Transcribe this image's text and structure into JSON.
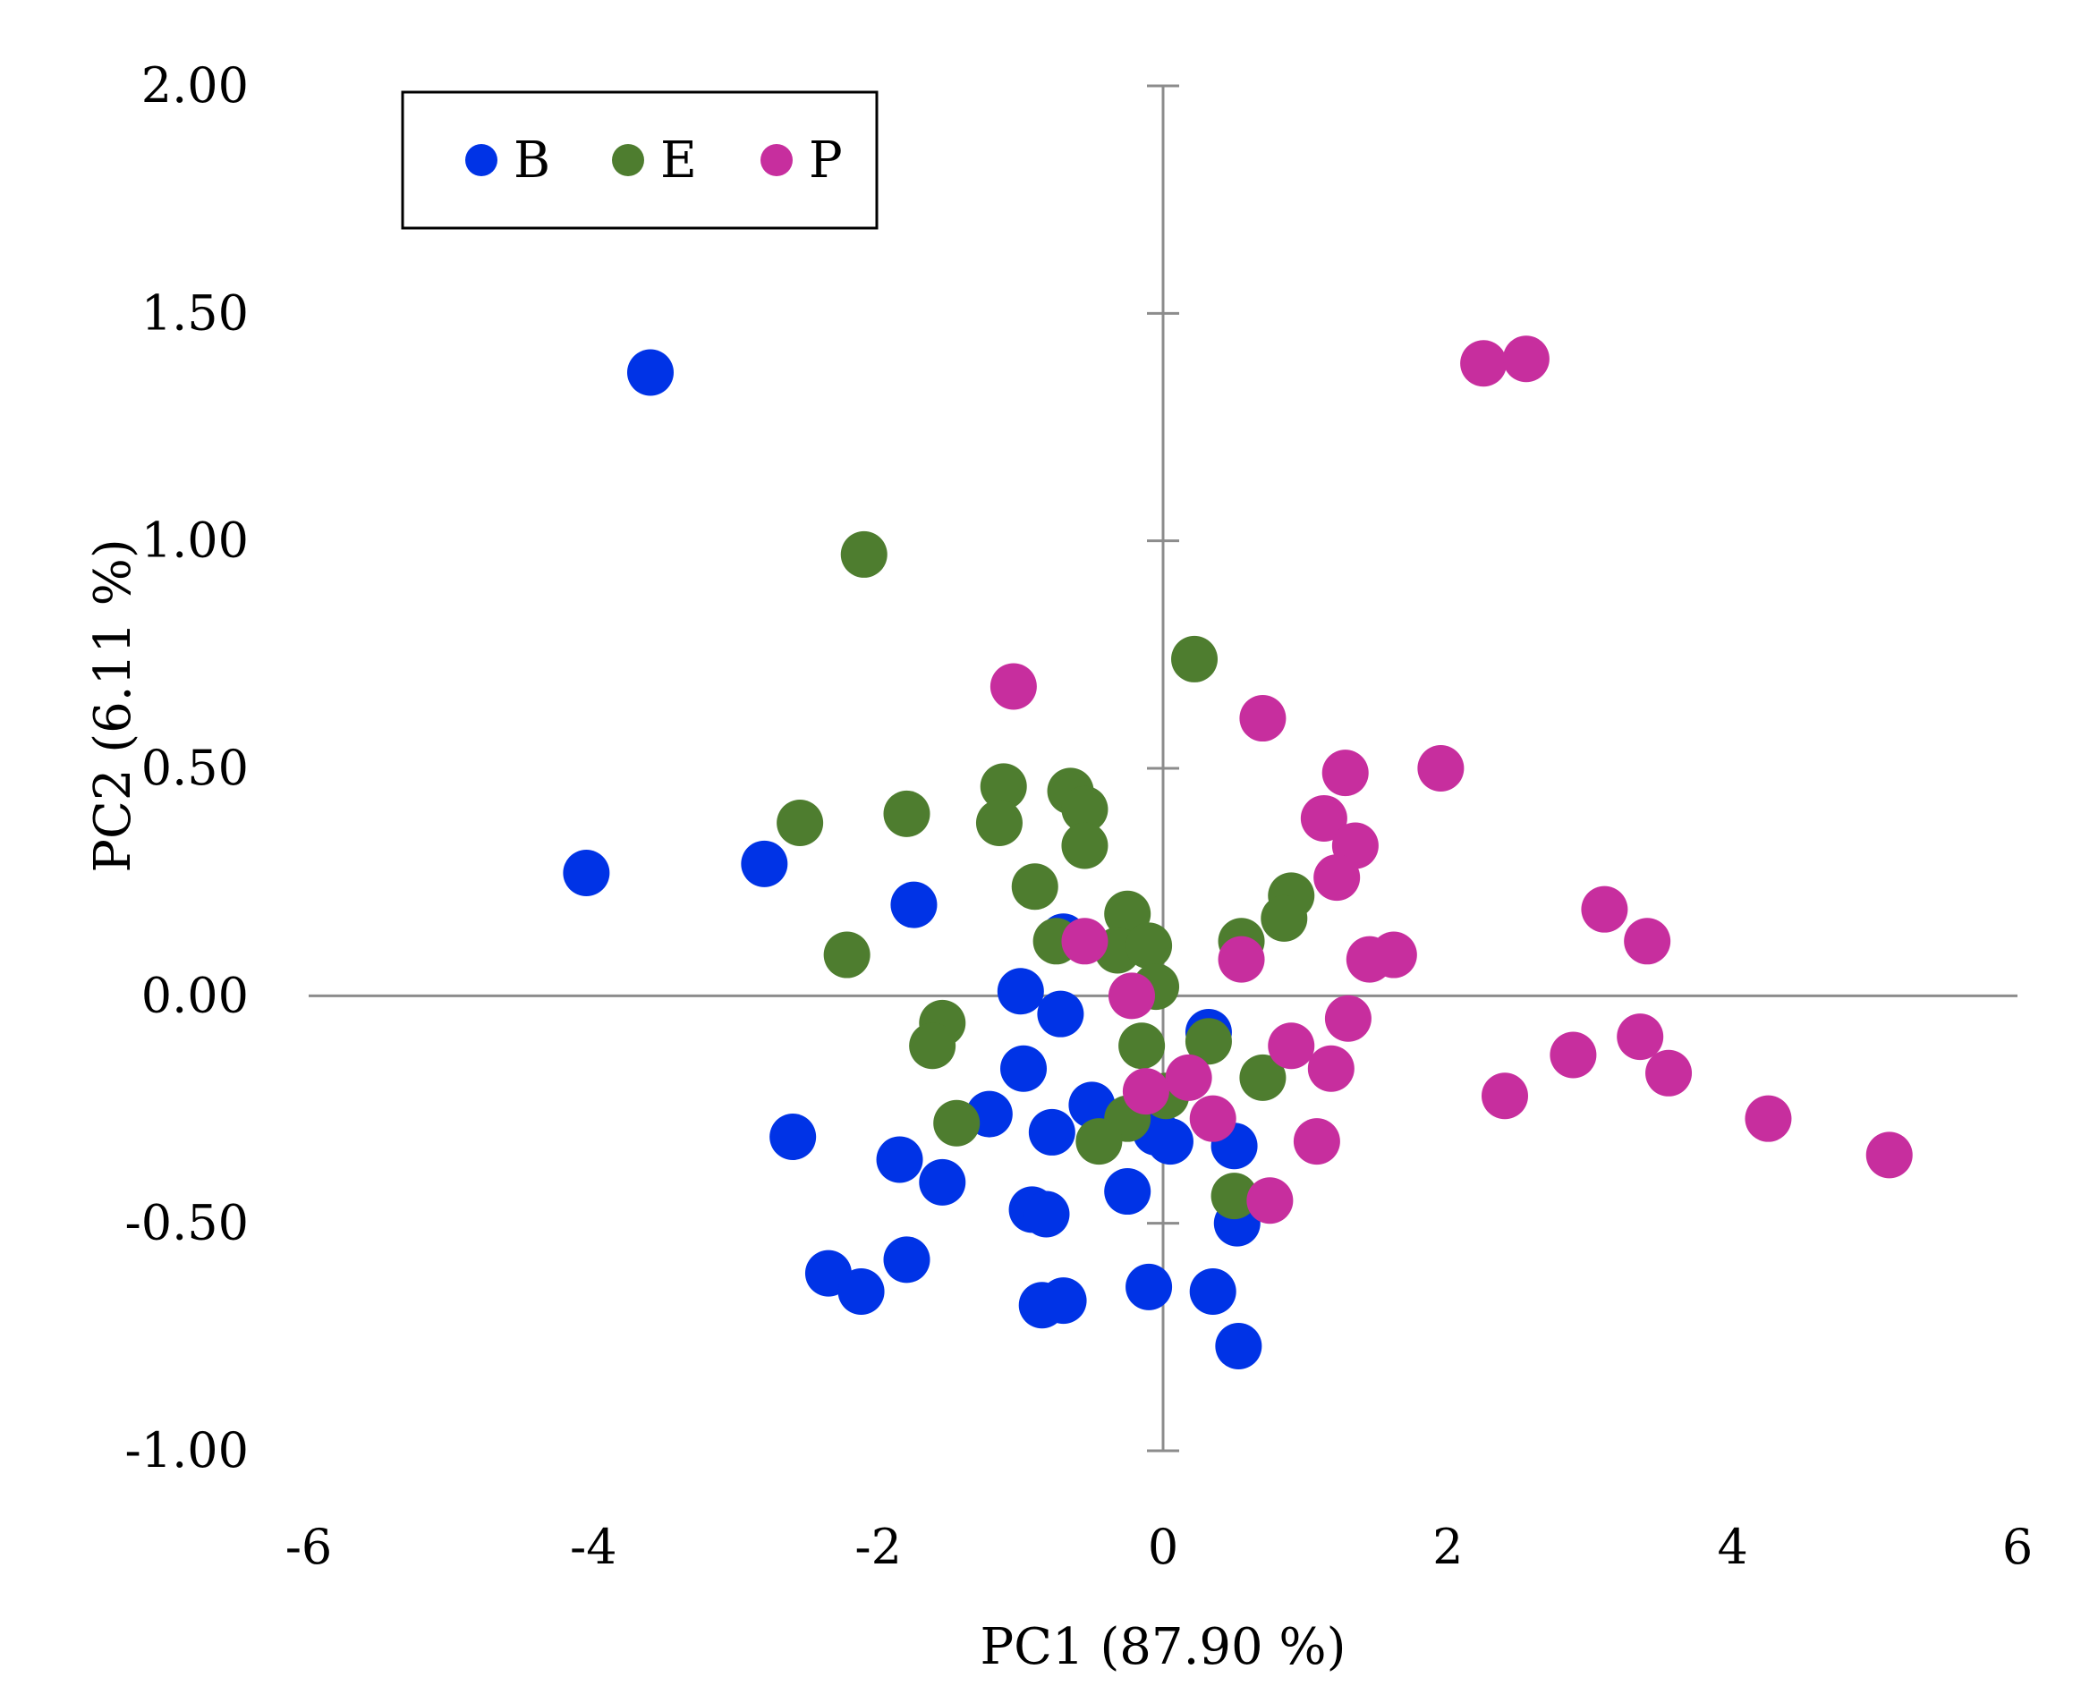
{
  "chart_data": {
    "type": "scatter",
    "title": "",
    "xlabel": "PC1 (87.90 %)",
    "ylabel": "PC2 (6.11 %)",
    "xlim": [
      -6,
      6
    ],
    "ylim": [
      -1.0,
      2.0
    ],
    "x_ticks": [
      -6,
      -4,
      -2,
      0,
      2,
      4,
      6
    ],
    "x_tick_labels": [
      "-6",
      "-4",
      "-2",
      "0",
      "2",
      "4",
      "6"
    ],
    "y_ticks": [
      2.0,
      1.5,
      1.0,
      0.5,
      0.0,
      -0.5,
      -1.0
    ],
    "y_tick_labels": [
      "2.00",
      "1.50",
      "1.00",
      "0.50",
      "0.00",
      "-0.50",
      "-1.00"
    ],
    "grid": false,
    "legend_position": "top-left",
    "series": [
      {
        "name": "B",
        "color": "#0033e6",
        "points": [
          [
            -3.6,
            1.37
          ],
          [
            -4.05,
            0.27
          ],
          [
            -2.8,
            0.29
          ],
          [
            -1.75,
            0.2
          ],
          [
            -0.7,
            0.13
          ],
          [
            -1.0,
            0.01
          ],
          [
            -0.72,
            -0.04
          ],
          [
            -0.98,
            -0.16
          ],
          [
            -1.22,
            -0.26
          ],
          [
            -0.78,
            -0.3
          ],
          [
            -0.5,
            -0.24
          ],
          [
            -0.05,
            -0.3
          ],
          [
            0.05,
            -0.32
          ],
          [
            0.32,
            -0.08
          ],
          [
            0.5,
            -0.33
          ],
          [
            -2.6,
            -0.31
          ],
          [
            -1.85,
            -0.36
          ],
          [
            -1.55,
            -0.41
          ],
          [
            -0.25,
            -0.43
          ],
          [
            -0.92,
            -0.47
          ],
          [
            -0.82,
            -0.48
          ],
          [
            0.52,
            -0.5
          ],
          [
            -2.35,
            -0.61
          ],
          [
            -2.12,
            -0.65
          ],
          [
            -1.8,
            -0.58
          ],
          [
            -0.85,
            -0.68
          ],
          [
            -0.7,
            -0.67
          ],
          [
            -0.1,
            -0.64
          ],
          [
            0.35,
            -0.65
          ],
          [
            0.53,
            -0.77
          ]
        ]
      },
      {
        "name": "E",
        "color": "#4e7d2f",
        "points": [
          [
            -2.1,
            0.97
          ],
          [
            0.22,
            0.74
          ],
          [
            -2.55,
            0.38
          ],
          [
            -1.8,
            0.4
          ],
          [
            -1.12,
            0.46
          ],
          [
            -1.15,
            0.38
          ],
          [
            -0.65,
            0.45
          ],
          [
            -0.55,
            0.41
          ],
          [
            -0.55,
            0.33
          ],
          [
            -0.9,
            0.24
          ],
          [
            -2.22,
            0.09
          ],
          [
            -0.25,
            0.18
          ],
          [
            -0.32,
            0.1
          ],
          [
            -0.1,
            0.11
          ],
          [
            -0.75,
            0.12
          ],
          [
            0.9,
            0.22
          ],
          [
            0.85,
            0.17
          ],
          [
            0.55,
            0.12
          ],
          [
            -0.05,
            0.02
          ],
          [
            -1.55,
            -0.06
          ],
          [
            -1.62,
            -0.11
          ],
          [
            -0.15,
            -0.11
          ],
          [
            0.32,
            -0.1
          ],
          [
            0.7,
            -0.18
          ],
          [
            -1.45,
            -0.28
          ],
          [
            -0.25,
            -0.27
          ],
          [
            0.02,
            -0.22
          ],
          [
            -0.45,
            -0.32
          ],
          [
            0.5,
            -0.44
          ]
        ]
      },
      {
        "name": "P",
        "color": "#c72e9e",
        "points": [
          [
            2.25,
            1.39
          ],
          [
            2.55,
            1.4
          ],
          [
            -1.05,
            0.68
          ],
          [
            0.7,
            0.61
          ],
          [
            1.28,
            0.49
          ],
          [
            1.95,
            0.5
          ],
          [
            1.13,
            0.39
          ],
          [
            1.35,
            0.33
          ],
          [
            1.22,
            0.26
          ],
          [
            3.1,
            0.19
          ],
          [
            3.4,
            0.12
          ],
          [
            1.45,
            0.08
          ],
          [
            1.62,
            0.09
          ],
          [
            -0.55,
            0.12
          ],
          [
            0.55,
            0.08
          ],
          [
            -0.22,
            0.0
          ],
          [
            1.3,
            -0.05
          ],
          [
            0.9,
            -0.11
          ],
          [
            1.18,
            -0.16
          ],
          [
            2.88,
            -0.13
          ],
          [
            3.35,
            -0.09
          ],
          [
            3.55,
            -0.17
          ],
          [
            0.18,
            -0.18
          ],
          [
            -0.12,
            -0.21
          ],
          [
            0.35,
            -0.27
          ],
          [
            2.4,
            -0.22
          ],
          [
            4.25,
            -0.27
          ],
          [
            1.08,
            -0.32
          ],
          [
            5.1,
            -0.35
          ],
          [
            0.75,
            -0.45
          ]
        ]
      }
    ]
  }
}
